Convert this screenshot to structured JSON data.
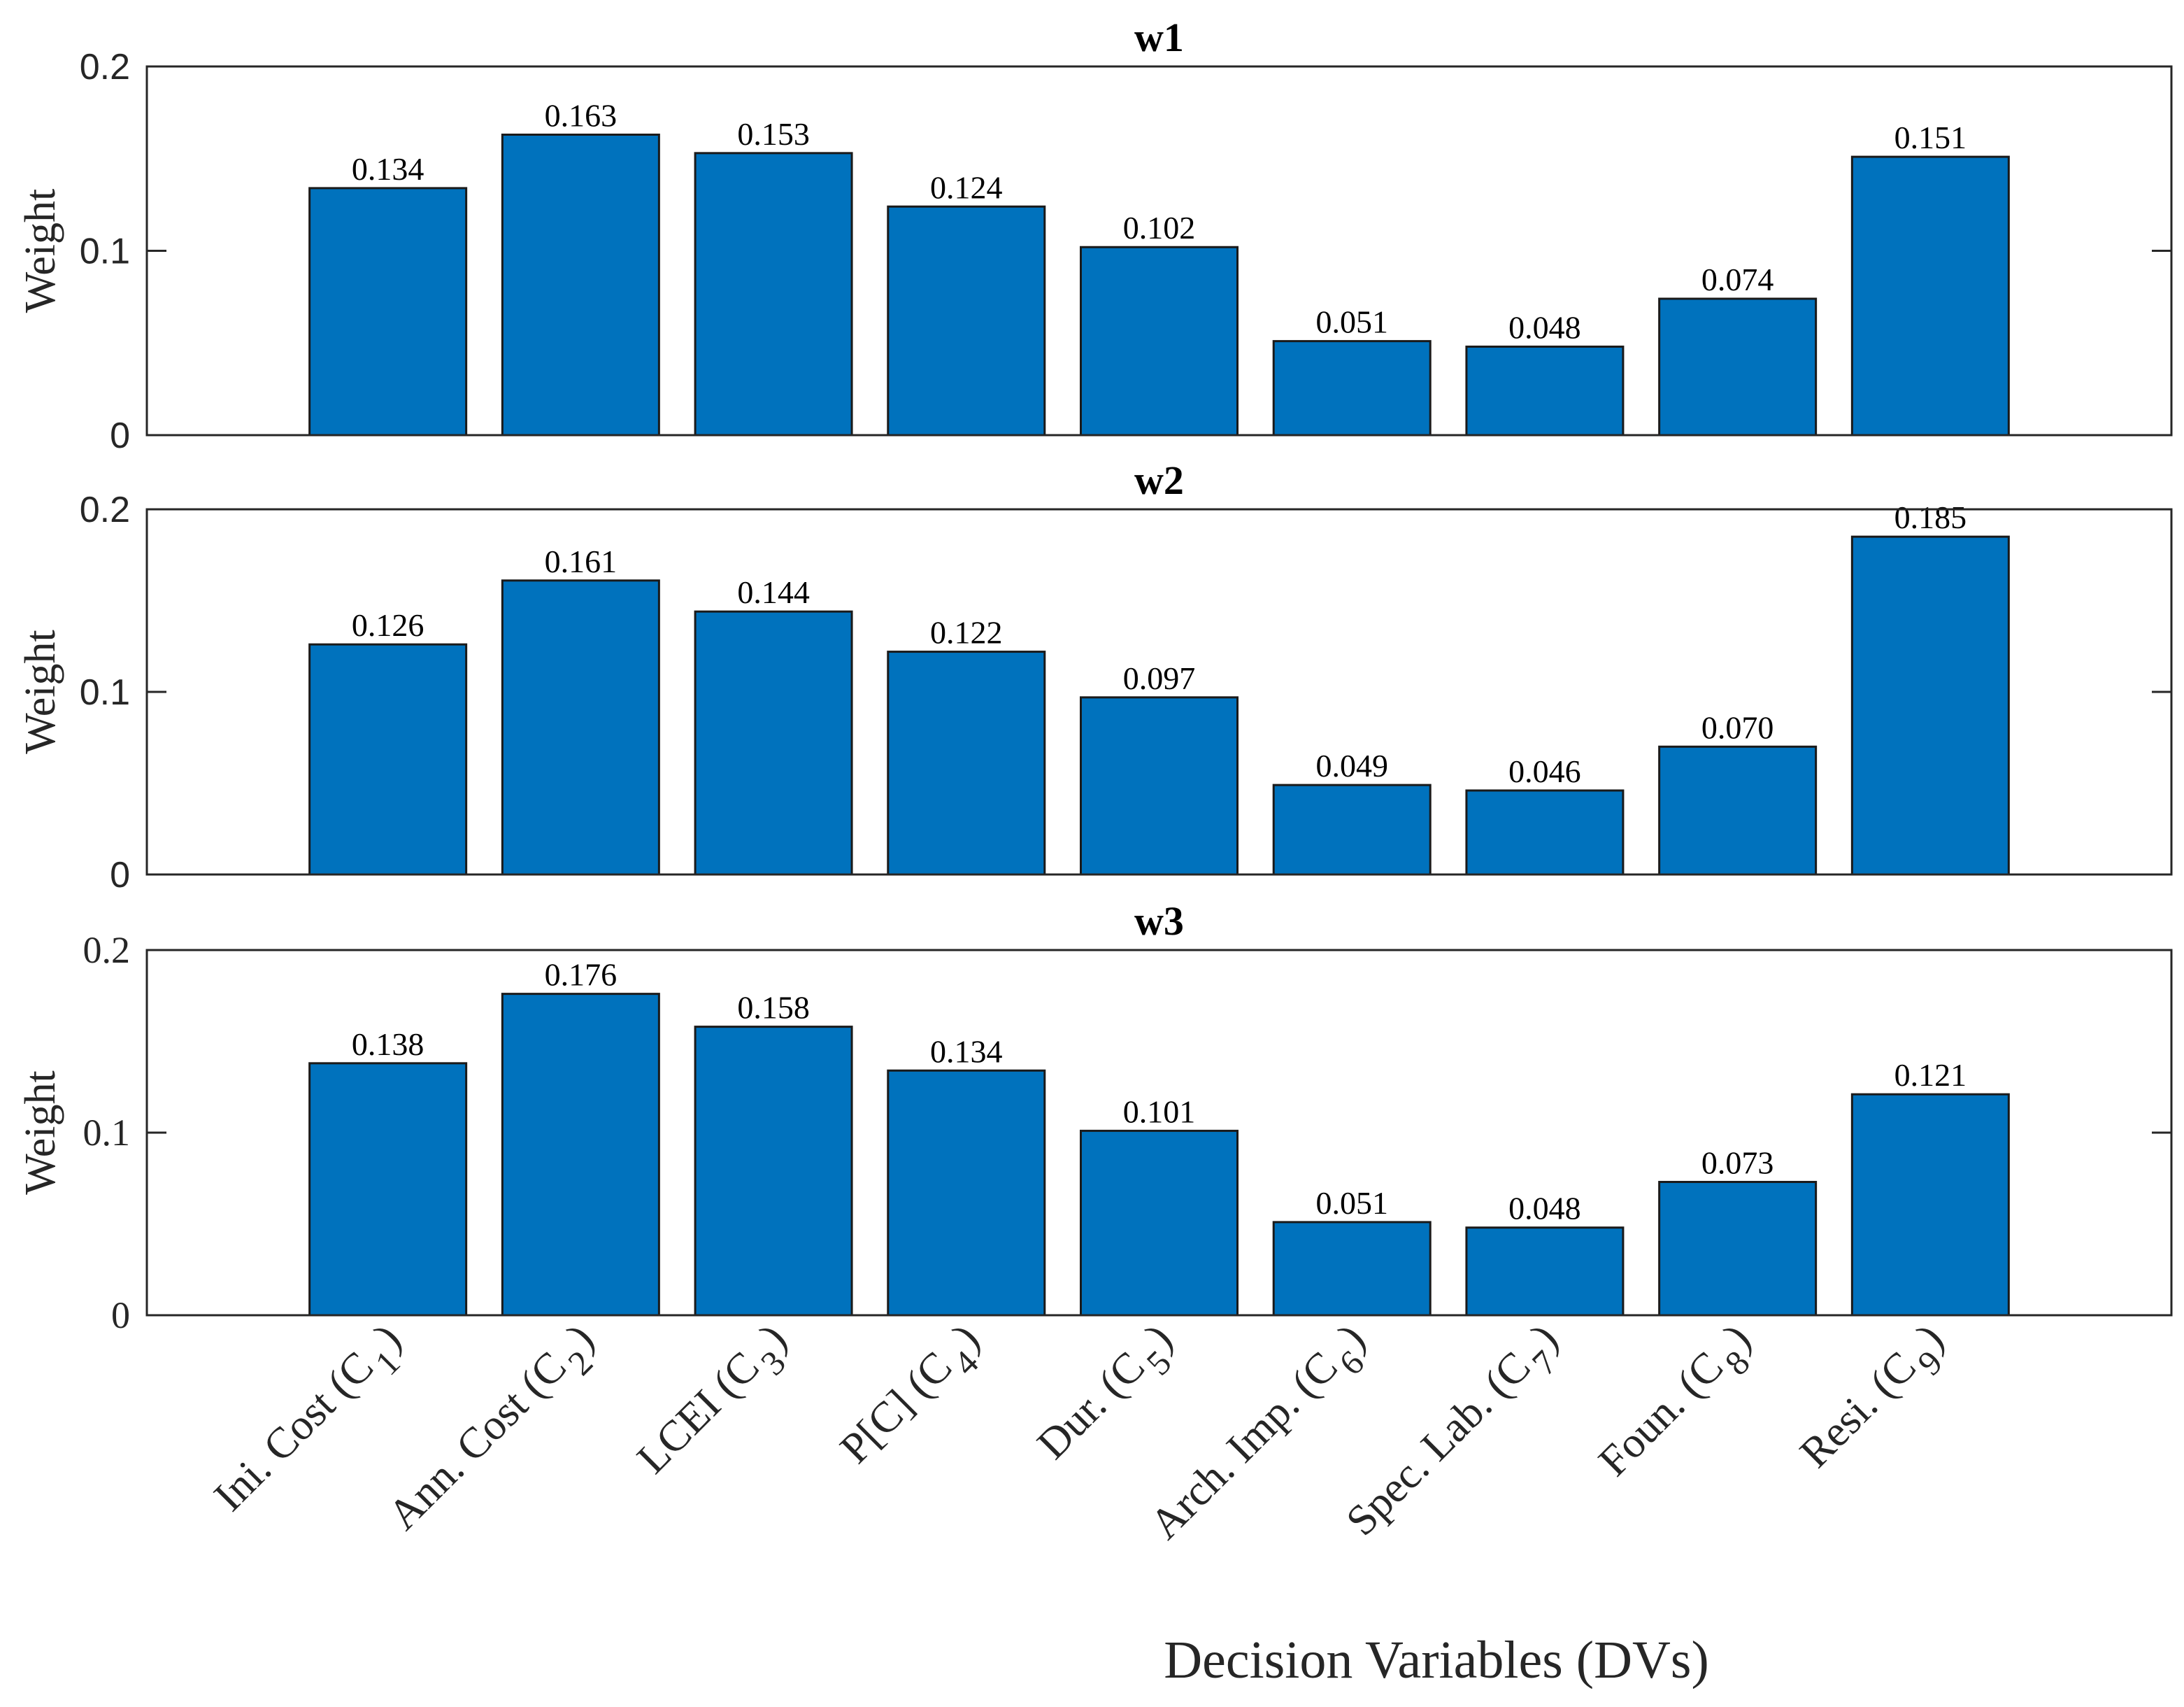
{
  "chart_data": {
    "type": "bar",
    "xlabel": "Decision Variables (DVs)",
    "categories": [
      {
        "text": "Ini. Cost (C",
        "sub": "1",
        "close": ")"
      },
      {
        "text": "Ann. Cost (C",
        "sub": "2",
        "close": ")"
      },
      {
        "text": "LCEI (C",
        "sub": "3",
        "close": ")"
      },
      {
        "text": "P[C] (C",
        "sub": "4",
        "close": ")"
      },
      {
        "text": "Dur. (C",
        "sub": "5",
        "close": ")"
      },
      {
        "text": "Arch. Imp. (C",
        "sub": "6",
        "close": ")"
      },
      {
        "text": "Spec. Lab. (C",
        "sub": "7",
        "close": ")"
      },
      {
        "text": "Foun. (C",
        "sub": "8",
        "close": ")"
      },
      {
        "text": "Resi. (C",
        "sub": "9",
        "close": ")"
      }
    ],
    "panels": [
      {
        "title": "w1",
        "ylabel": "Weight",
        "ylim": [
          0,
          0.2
        ],
        "yticks": [
          "0",
          "0.1",
          "0.2"
        ],
        "values": [
          0.134,
          0.163,
          0.153,
          0.124,
          0.102,
          0.051,
          0.048,
          0.074,
          0.151
        ],
        "labels": [
          "0.134",
          "0.163",
          "0.153",
          "0.124",
          "0.102",
          "0.051",
          "0.048",
          "0.074",
          "0.151"
        ]
      },
      {
        "title": "w2",
        "ylabel": "Weight",
        "ylim": [
          0,
          0.2
        ],
        "yticks": [
          "0",
          "0.1",
          "0.2"
        ],
        "values": [
          0.126,
          0.161,
          0.144,
          0.122,
          0.097,
          0.049,
          0.046,
          0.07,
          0.185
        ],
        "labels": [
          "0.126",
          "0.161",
          "0.144",
          "0.122",
          "0.097",
          "0.049",
          "0.046",
          "0.070",
          "0.185"
        ]
      },
      {
        "title": "w3",
        "ylabel": "Weight",
        "ylim": [
          0,
          0.2
        ],
        "yticks": [
          "0",
          "0.1",
          "0.2"
        ],
        "values": [
          0.138,
          0.176,
          0.158,
          0.134,
          0.101,
          0.051,
          0.048,
          0.073,
          0.121
        ],
        "labels": [
          "0.138",
          "0.176",
          "0.158",
          "0.134",
          "0.101",
          "0.051",
          "0.048",
          "0.073",
          "0.121"
        ]
      }
    ],
    "colors": {
      "bar": "#0072bd",
      "edge": "#1a1a1a"
    }
  }
}
